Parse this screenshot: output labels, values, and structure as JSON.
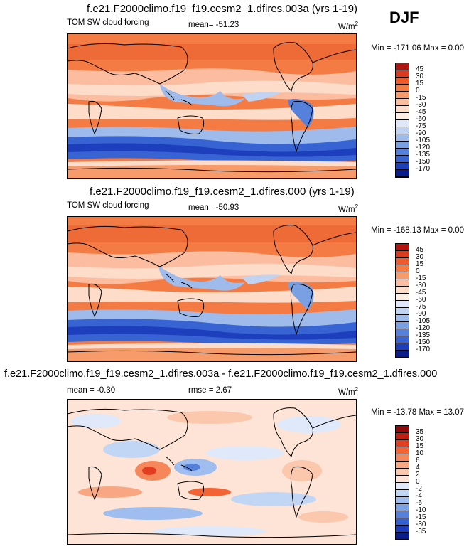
{
  "season": "DJF",
  "panels": [
    {
      "title": "f.e21.F2000climo.f19_f19.cesm2_1.dfires.003a (yrs 1-19)",
      "left_label": "TOM SW cloud forcing",
      "center_label": "mean= -51.23",
      "units": "W/m",
      "units_exp": "2",
      "minmax": "Min = -171.06 Max =   0.00",
      "levels": [
        "45",
        "30",
        "15",
        "0",
        "-15",
        "-30",
        "-45",
        "-60",
        "-75",
        "-90",
        "-105",
        "-120",
        "-135",
        "-150",
        "-170"
      ],
      "colors": [
        "#b2150f",
        "#d83b1e",
        "#ee5a2c",
        "#f47c44",
        "#f89b6b",
        "#fbbca0",
        "#fddcc9",
        "#fdeee3",
        "#dfe8f8",
        "#c1d3f2",
        "#9fbbec",
        "#7aa0e4",
        "#5580dc",
        "#3763d3",
        "#1e3fbd",
        "#0a1d8f"
      ]
    },
    {
      "title": "f.e21.F2000climo.f19_f19.cesm2_1.dfires.000 (yrs 1-19)",
      "left_label": "TOM SW cloud forcing",
      "center_label": "mean= -50.93",
      "units": "W/m",
      "units_exp": "2",
      "minmax": "Min = -168.13 Max =   0.00",
      "levels": [
        "45",
        "30",
        "15",
        "0",
        "-15",
        "-30",
        "-45",
        "-60",
        "-75",
        "-90",
        "-105",
        "-120",
        "-135",
        "-150",
        "-170"
      ],
      "colors": [
        "#b2150f",
        "#d83b1e",
        "#ee5a2c",
        "#f47c44",
        "#f89b6b",
        "#fbbca0",
        "#fddcc9",
        "#fdeee3",
        "#dfe8f8",
        "#c1d3f2",
        "#9fbbec",
        "#7aa0e4",
        "#5580dc",
        "#3763d3",
        "#1e3fbd",
        "#0a1d8f"
      ]
    },
    {
      "title": "f.e21.F2000climo.f19_f19.cesm2_1.dfires.003a - f.e21.F2000climo.f19_f19.cesm2_1.dfires.000",
      "left_label": "mean =  -0.30",
      "center_label": "rmse =   2.67",
      "units": "W/m",
      "units_exp": "2",
      "minmax": "Min = -13.78 Max =  13.07",
      "levels": [
        "35",
        "30",
        "15",
        "10",
        "6",
        "4",
        "2",
        "0",
        "-2",
        "-4",
        "-6",
        "-10",
        "-15",
        "-30",
        "-35"
      ],
      "colors": [
        "#8e0a0a",
        "#c21d12",
        "#e23d20",
        "#f26336",
        "#f6875b",
        "#f9a783",
        "#fbc7ad",
        "#fde4d6",
        "#dfe9fa",
        "#c1d5f4",
        "#9fbdee",
        "#7ba1e6",
        "#5580dc",
        "#3560d2",
        "#1b3cbc",
        "#0a1d8f"
      ]
    }
  ],
  "chart_data": [
    {
      "type": "heatmap",
      "title": "f.e21.F2000climo.f19_f19.cesm2_1.dfires.003a (yrs 1-19)",
      "variable": "TOM SW cloud forcing",
      "season": "DJF",
      "units": "W/m2",
      "mean": -51.23,
      "min": -171.06,
      "max": 0.0,
      "levels": [
        45,
        30,
        15,
        0,
        -15,
        -30,
        -45,
        -60,
        -75,
        -90,
        -105,
        -120,
        -135,
        -150,
        -170
      ]
    },
    {
      "type": "heatmap",
      "title": "f.e21.F2000climo.f19_f19.cesm2_1.dfires.000 (yrs 1-19)",
      "variable": "TOM SW cloud forcing",
      "season": "DJF",
      "units": "W/m2",
      "mean": -50.93,
      "min": -168.13,
      "max": 0.0,
      "levels": [
        45,
        30,
        15,
        0,
        -15,
        -30,
        -45,
        -60,
        -75,
        -90,
        -105,
        -120,
        -135,
        -150,
        -170
      ]
    },
    {
      "type": "heatmap",
      "title": "f.e21.F2000climo.f19_f19.cesm2_1.dfires.003a - f.e21.F2000climo.f19_f19.cesm2_1.dfires.000",
      "season": "DJF",
      "units": "W/m2",
      "mean": -0.3,
      "rmse": 2.67,
      "min": -13.78,
      "max": 13.07,
      "levels": [
        35,
        30,
        15,
        10,
        6,
        4,
        2,
        0,
        -2,
        -4,
        -6,
        -10,
        -15,
        -30,
        -35
      ]
    }
  ]
}
